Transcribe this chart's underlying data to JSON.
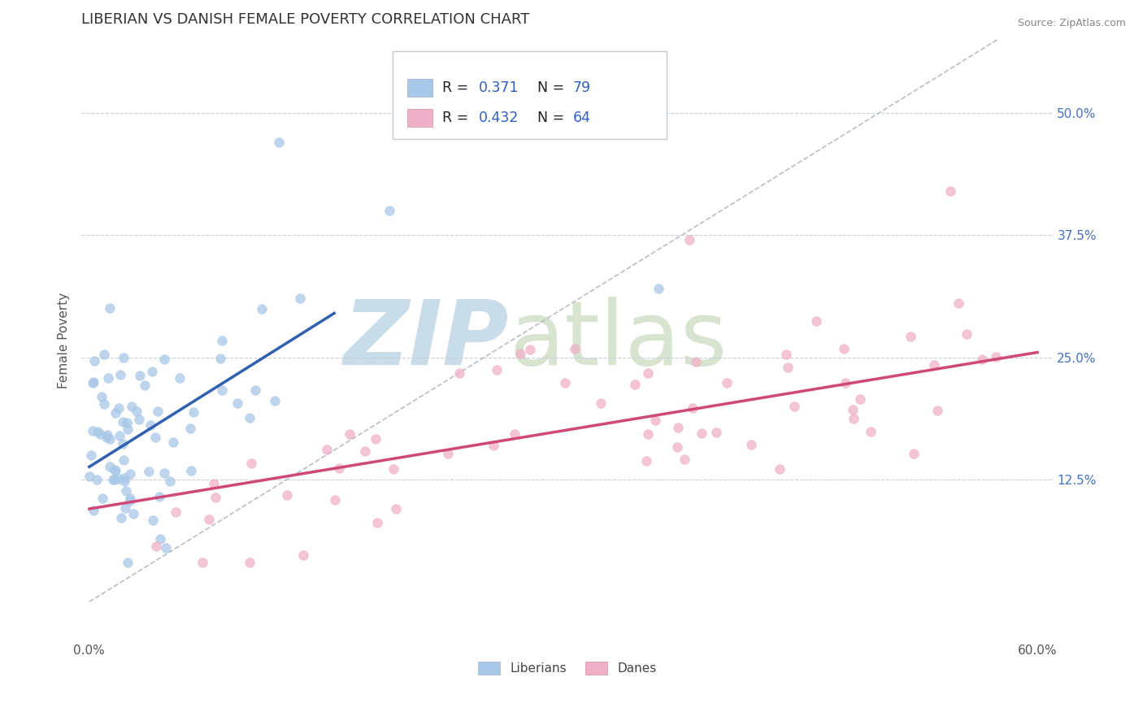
{
  "title": "LIBERIAN VS DANISH FEMALE POVERTY CORRELATION CHART",
  "source": "Source: ZipAtlas.com",
  "ylabel": "Female Poverty",
  "xlim": [
    -0.005,
    0.61
  ],
  "ylim": [
    -0.04,
    0.575
  ],
  "xticks": [
    0.0,
    0.1,
    0.2,
    0.3,
    0.4,
    0.5,
    0.6
  ],
  "xticklabels": [
    "0.0%",
    "",
    "",
    "",
    "",
    "",
    "60.0%"
  ],
  "yticks_right": [
    0.125,
    0.25,
    0.375,
    0.5
  ],
  "ytick_right_labels": [
    "12.5%",
    "25.0%",
    "37.5%",
    "50.0%"
  ],
  "liberian_color": "#a8c8e8",
  "danish_color": "#f0b0c8",
  "liberian_line_color": "#3060b0",
  "danish_line_color": "#d04878",
  "R_liberian": 0.371,
  "N_liberian": 79,
  "R_danish": 0.432,
  "N_danish": 64,
  "legend_label_1": "Liberians",
  "legend_label_2": "Danes",
  "title_fontsize": 13,
  "label_fontsize": 11,
  "tick_fontsize": 11,
  "lib_line_x0": 0.0,
  "lib_line_x1": 0.155,
  "lib_line_y0": 0.138,
  "lib_line_y1": 0.295,
  "dan_line_x0": 0.0,
  "dan_line_x1": 0.6,
  "dan_line_y0": 0.095,
  "dan_line_y1": 0.255,
  "ref_line_x0": 0.0,
  "ref_line_x1": 0.575,
  "ref_line_y0": 0.0,
  "ref_line_y1": 0.575
}
